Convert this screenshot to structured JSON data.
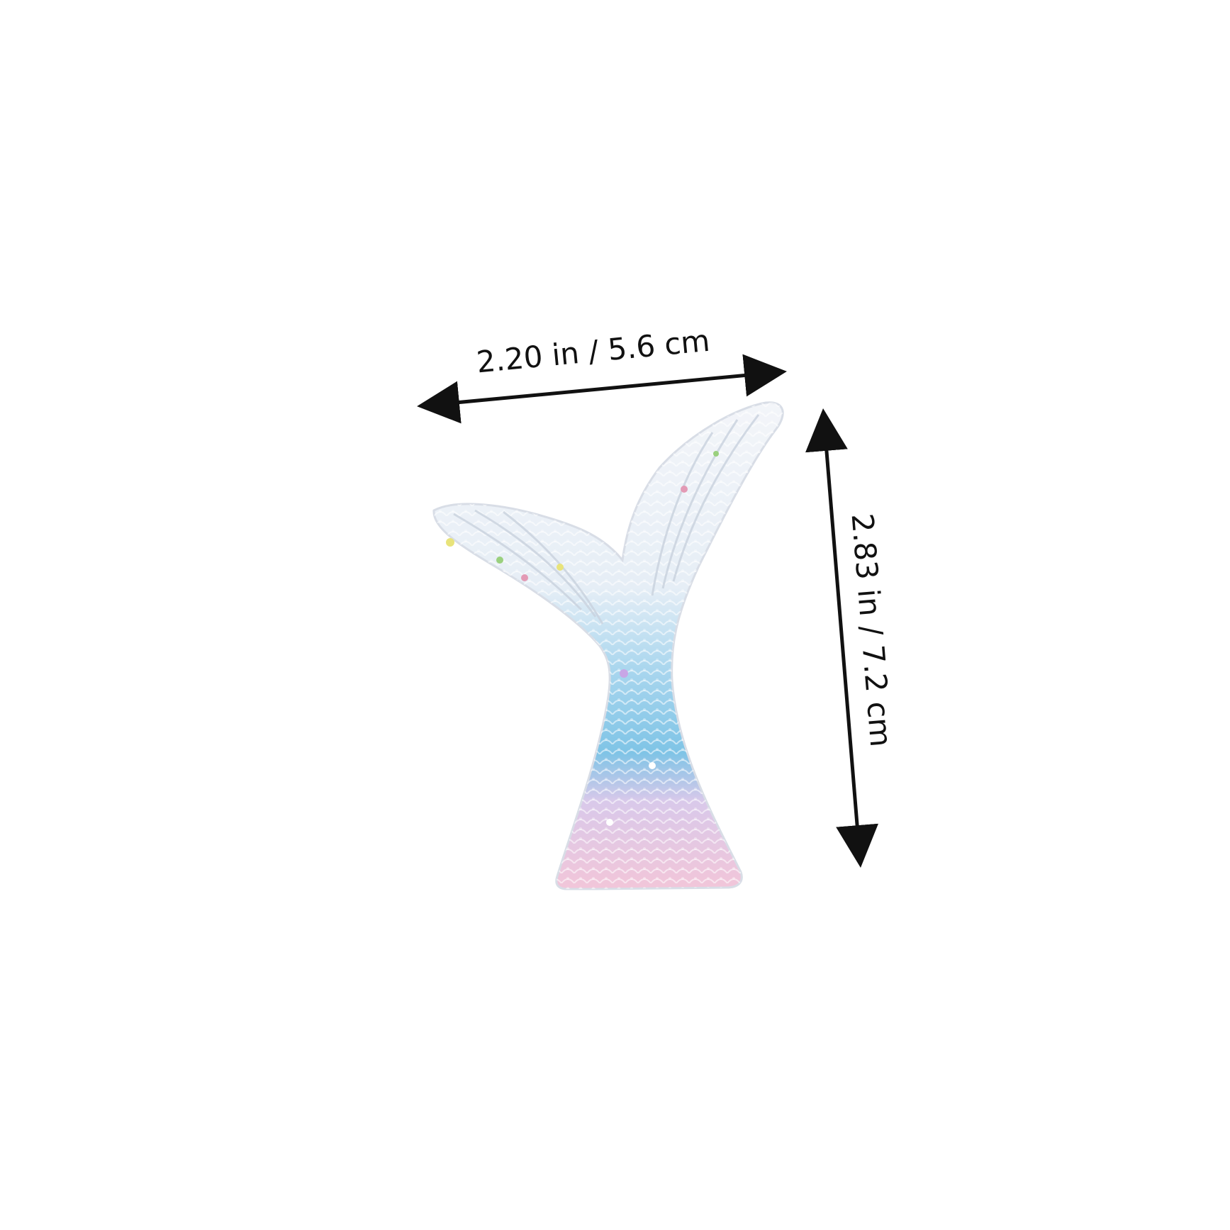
{
  "product": {
    "subject": "mermaid-tail"
  },
  "dimensions": {
    "width_label": "2.20 in / 5.6 cm",
    "height_label": "2.83 in / 7.2 cm"
  },
  "colors": {
    "background": "#ffffff",
    "arrow": "#111111",
    "fin_white": "#eef1f6",
    "tail_blue": "#7fc4e6",
    "tail_pink": "#f2c6d9"
  }
}
